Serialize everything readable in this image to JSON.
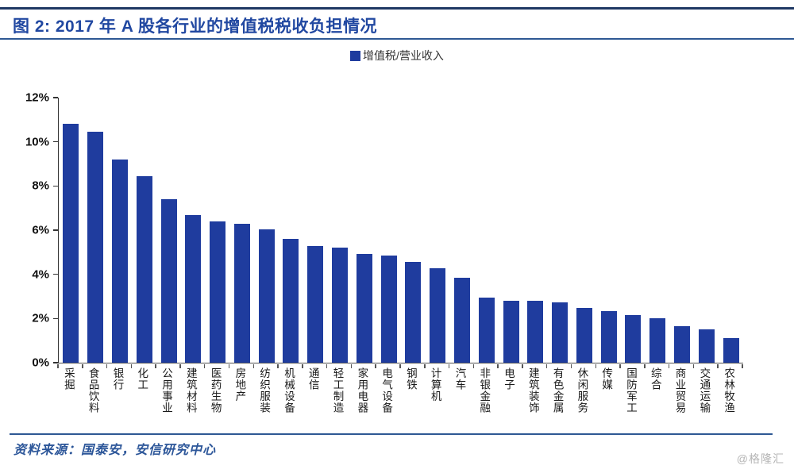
{
  "header": {
    "title": "图 2: 2017 年 A 股各行业的增值税税收负担情况"
  },
  "legend": {
    "label": "增值税/营业收入"
  },
  "chart_data": {
    "type": "bar",
    "title": "2017 年 A 股各行业的增值税税收负担情况",
    "series_name": "增值税/营业收入",
    "categories": [
      "采掘",
      "食品饮料",
      "银行",
      "化工",
      "公用事业",
      "建筑材料",
      "医药生物",
      "房地产",
      "纺织服装",
      "机械设备",
      "通信",
      "轻工制造",
      "家用电器",
      "电气设备",
      "钢铁",
      "计算机",
      "汽车",
      "非银金融",
      "电子",
      "建筑装饰",
      "有色金属",
      "休闲服务",
      "传媒",
      "国防军工",
      "综合",
      "商业贸易",
      "交通运输",
      "农林牧渔"
    ],
    "values": [
      10.8,
      10.45,
      9.2,
      8.45,
      7.4,
      6.7,
      6.4,
      6.3,
      6.05,
      5.6,
      5.27,
      5.2,
      4.92,
      4.85,
      4.58,
      4.26,
      3.85,
      2.95,
      2.82,
      2.8,
      2.72,
      2.47,
      2.34,
      2.17,
      2.0,
      1.64,
      1.51,
      1.11
    ],
    "value_unit": "%",
    "ylim": [
      0,
      12
    ],
    "yticks": [
      "0%",
      "2%",
      "4%",
      "6%",
      "8%",
      "10%",
      "12%"
    ],
    "xlabel": "",
    "ylabel": "",
    "grid": false,
    "legend_position": "top-center",
    "bar_color": "#1F3C9E"
  },
  "footer": {
    "source": "资料来源：国泰安，安信研究中心",
    "watermark": "@格隆汇"
  }
}
